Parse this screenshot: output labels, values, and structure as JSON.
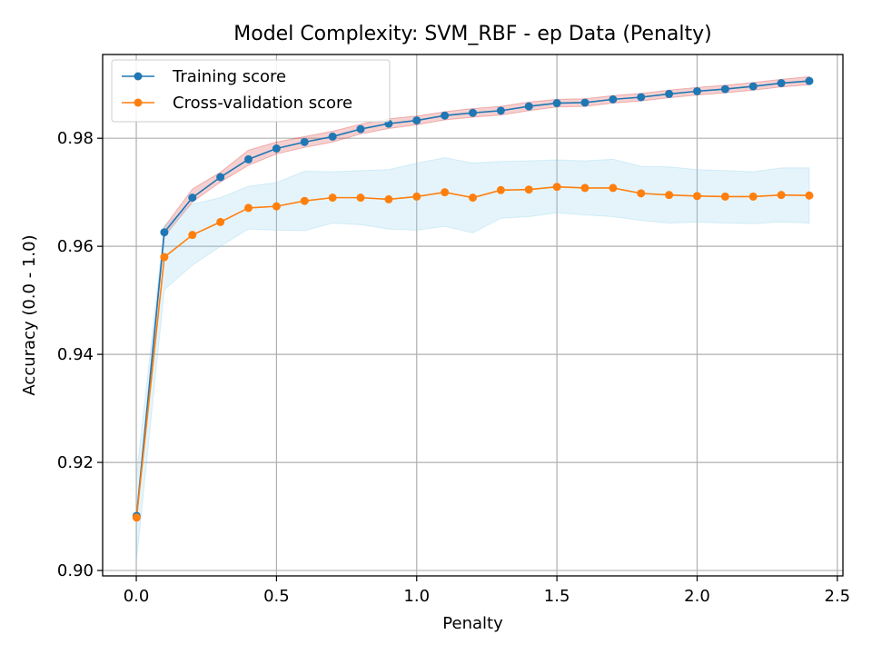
{
  "chart_data": {
    "type": "line",
    "title": "Model Complexity: SVM_RBF - ep Data (Penalty)",
    "xlabel": "Penalty",
    "ylabel": "Accuracy (0.0 - 1.0)",
    "xlim": [
      -0.12,
      2.52
    ],
    "ylim": [
      0.899,
      0.9955
    ],
    "xticks": [
      0.0,
      0.5,
      1.0,
      1.5,
      2.0,
      2.5
    ],
    "xtick_labels": [
      "0.0",
      "0.5",
      "1.0",
      "1.5",
      "2.0",
      "2.5"
    ],
    "yticks": [
      0.9,
      0.92,
      0.94,
      0.96,
      0.98
    ],
    "ytick_labels": [
      "0.90",
      "0.92",
      "0.94",
      "0.96",
      "0.98"
    ],
    "grid": true,
    "legend_position": "top-left",
    "x": [
      0.001,
      0.1,
      0.2,
      0.3,
      0.4,
      0.5,
      0.6,
      0.7,
      0.8,
      0.9,
      1.0,
      1.1,
      1.2,
      1.3,
      1.4,
      1.5,
      1.6,
      1.7,
      1.8,
      1.9,
      2.0,
      2.1,
      2.2,
      2.3,
      2.4
    ],
    "series": [
      {
        "name": "Training score",
        "color": "#1f77b4",
        "band_color": "#d62728",
        "values": [
          0.9101,
          0.9626,
          0.969,
          0.9728,
          0.9761,
          0.9781,
          0.9793,
          0.9803,
          0.9817,
          0.9827,
          0.9833,
          0.9842,
          0.9847,
          0.9851,
          0.9859,
          0.9865,
          0.9866,
          0.9872,
          0.9876,
          0.9882,
          0.9887,
          0.9891,
          0.9896,
          0.9902,
          0.9906
        ],
        "band_lower": [
          0.9095,
          0.9618,
          0.9682,
          0.9719,
          0.975,
          0.9771,
          0.9783,
          0.9793,
          0.9808,
          0.9818,
          0.9825,
          0.9834,
          0.9839,
          0.9843,
          0.9851,
          0.9858,
          0.9859,
          0.9865,
          0.9869,
          0.9875,
          0.988,
          0.9884,
          0.9889,
          0.9895,
          0.9899
        ],
        "band_upper": [
          0.9106,
          0.9636,
          0.9706,
          0.9737,
          0.9778,
          0.9793,
          0.9803,
          0.9813,
          0.9826,
          0.9836,
          0.9841,
          0.9849,
          0.9855,
          0.9859,
          0.9867,
          0.9872,
          0.9873,
          0.9879,
          0.9883,
          0.9889,
          0.9894,
          0.9898,
          0.9903,
          0.9909,
          0.9914
        ]
      },
      {
        "name": "Cross-validation score",
        "color": "#ff7f0e",
        "band_color": "#87ceeb",
        "values": [
          0.9098,
          0.958,
          0.9621,
          0.9645,
          0.9671,
          0.9674,
          0.9684,
          0.969,
          0.969,
          0.9687,
          0.9692,
          0.97,
          0.969,
          0.9704,
          0.9705,
          0.971,
          0.9708,
          0.9708,
          0.9698,
          0.9695,
          0.9693,
          0.9692,
          0.9692,
          0.9695,
          0.9694
        ],
        "band_lower": [
          0.902,
          0.952,
          0.9565,
          0.96,
          0.9632,
          0.963,
          0.9629,
          0.9643,
          0.964,
          0.9632,
          0.963,
          0.9637,
          0.9625,
          0.9652,
          0.9655,
          0.9662,
          0.9658,
          0.9655,
          0.9648,
          0.9643,
          0.9645,
          0.9643,
          0.9642,
          0.9645,
          0.9643
        ],
        "band_upper": [
          0.9176,
          0.9638,
          0.9678,
          0.969,
          0.9711,
          0.9718,
          0.9739,
          0.9738,
          0.974,
          0.9742,
          0.9754,
          0.9764,
          0.9754,
          0.9757,
          0.9758,
          0.976,
          0.9758,
          0.9761,
          0.9748,
          0.9747,
          0.9742,
          0.974,
          0.9738,
          0.9745,
          0.9745
        ]
      }
    ]
  }
}
